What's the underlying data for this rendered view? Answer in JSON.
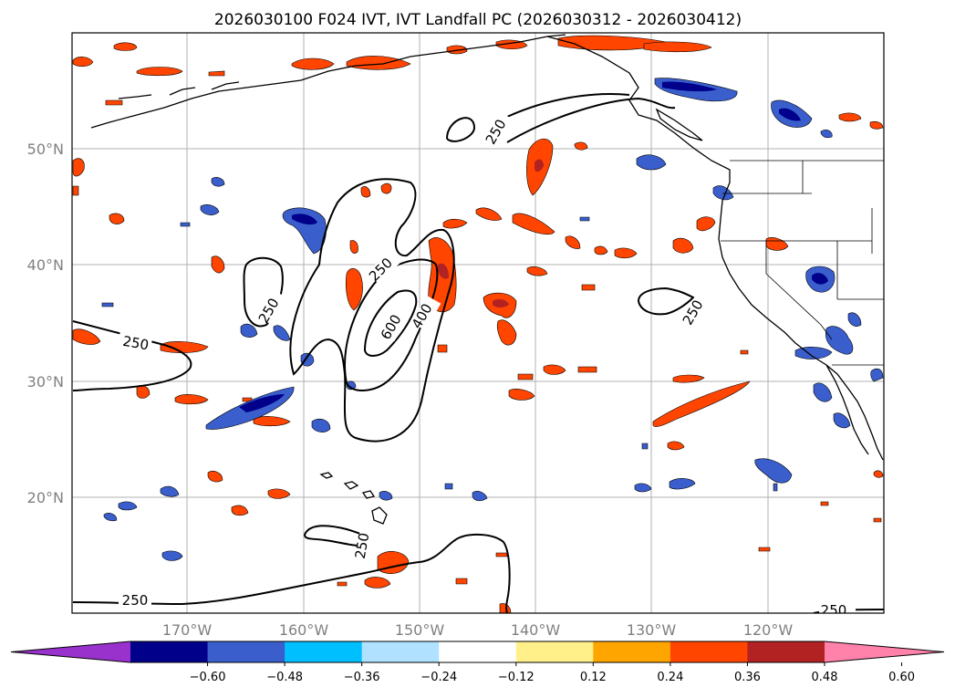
{
  "title": "2026030100 F024 IVT, IVT Landfall PC (2026030312 - 2026030412)",
  "latitude_labels": [
    "50°N",
    "40°N",
    "30°N",
    "20°N"
  ],
  "longitude_labels": [
    "170°W",
    "160°W",
    "150°W",
    "140°W",
    "130°W",
    "120°W"
  ],
  "contour_labels": [
    {
      "text": "250",
      "contour": "northern"
    },
    {
      "text": "250",
      "contour": "central-outer"
    },
    {
      "text": "250",
      "contour": "western-lobe"
    },
    {
      "text": "400",
      "contour": "central-middle"
    },
    {
      "text": "600",
      "contour": "central-inner"
    },
    {
      "text": "250",
      "contour": "west-edge"
    },
    {
      "text": "250",
      "contour": "east-small"
    },
    {
      "text": "250",
      "contour": "southern"
    },
    {
      "text": "250",
      "contour": "south-west"
    },
    {
      "text": "250",
      "contour": "south-east-corner"
    }
  ],
  "colorbar": {
    "ticks": [
      "−0.60",
      "−0.48",
      "−0.36",
      "−0.24",
      "−0.12",
      "0.12",
      "0.24",
      "0.36",
      "0.48",
      "0.60"
    ],
    "colors": [
      "#9932cc",
      "#00008b",
      "#3a5fcd",
      "#00bfff",
      "#b0e2ff",
      "#ffffff",
      "#fff08a",
      "#ffa500",
      "#ff4500",
      "#b22222",
      "#ff82ab"
    ]
  },
  "map_colors": {
    "ocean": "#ffffff",
    "coastline": "#000000",
    "grid": "#b0b0b0",
    "contour": "#000000"
  }
}
